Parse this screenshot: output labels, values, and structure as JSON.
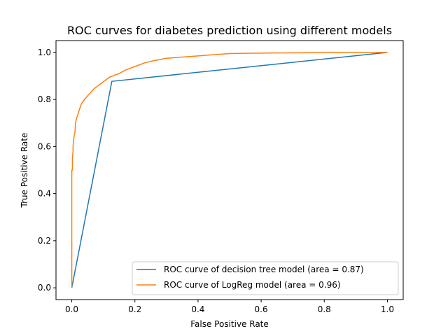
{
  "chart_data": {
    "type": "line",
    "title": "ROC curves for diabetes prediction using different models",
    "xlabel": "False Positive Rate",
    "ylabel": "True Positive Rate",
    "xlim": [
      -0.05,
      1.05
    ],
    "ylim": [
      -0.05,
      1.05
    ],
    "xticks": [
      "0.0",
      "0.2",
      "0.4",
      "0.6",
      "0.8",
      "1.0"
    ],
    "yticks": [
      "0.0",
      "0.2",
      "0.4",
      "0.6",
      "0.8",
      "1.0"
    ],
    "grid": false,
    "legend_position": "lower-right",
    "series": [
      {
        "name": "ROC curve of decision tree model (area = 0.87)",
        "color": "#1f77b4",
        "x": [
          0.0,
          0.127,
          1.0
        ],
        "y": [
          0.0,
          0.877,
          1.0
        ]
      },
      {
        "name": "ROC curve of LogReg model (area = 0.96)",
        "color": "#ff7f0e",
        "x": [
          0.0,
          0.0,
          0.002,
          0.002,
          0.004,
          0.004,
          0.006,
          0.008,
          0.01,
          0.012,
          0.015,
          0.018,
          0.02,
          0.025,
          0.03,
          0.035,
          0.04,
          0.05,
          0.06,
          0.07,
          0.08,
          0.09,
          0.1,
          0.11,
          0.12,
          0.13,
          0.15,
          0.17,
          0.2,
          0.23,
          0.26,
          0.3,
          0.35,
          0.4,
          0.45,
          0.5,
          0.55,
          0.6,
          0.7,
          0.8,
          0.9,
          1.0
        ],
        "y": [
          0.0,
          0.5,
          0.5,
          0.55,
          0.58,
          0.6,
          0.63,
          0.65,
          0.66,
          0.7,
          0.72,
          0.73,
          0.74,
          0.76,
          0.78,
          0.79,
          0.8,
          0.815,
          0.83,
          0.845,
          0.855,
          0.865,
          0.875,
          0.885,
          0.895,
          0.9,
          0.91,
          0.925,
          0.94,
          0.955,
          0.965,
          0.975,
          0.98,
          0.985,
          0.99,
          0.995,
          0.996,
          0.997,
          0.998,
          0.999,
          1.0,
          1.0
        ]
      }
    ]
  }
}
